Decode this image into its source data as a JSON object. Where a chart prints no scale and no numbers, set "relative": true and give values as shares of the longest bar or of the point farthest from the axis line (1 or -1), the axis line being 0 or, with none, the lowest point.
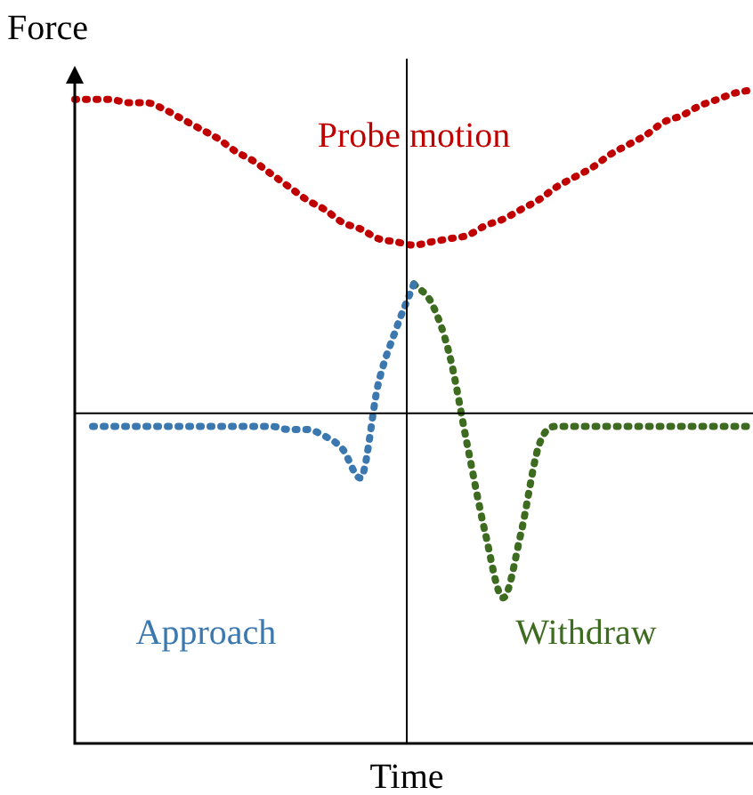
{
  "chart_data": {
    "type": "line",
    "relative": true,
    "xlabel": "Time",
    "ylabel": "Force",
    "line_style": "dotted",
    "marker": "none",
    "legend": false,
    "tick_labels": false,
    "categories": [
      null,
      null,
      null,
      null,
      null,
      null,
      null,
      null,
      null,
      null,
      null,
      null,
      null,
      null,
      null,
      null,
      null,
      null,
      null,
      null,
      null,
      null,
      null,
      null,
      null,
      null,
      null,
      null,
      null,
      null,
      null,
      null,
      null,
      null,
      null,
      null,
      null,
      null,
      null
    ],
    "series": [
      {
        "name": "Probe motion",
        "color": "#c00000",
        "values": [
          0.97,
          0.97,
          0.97,
          0.96,
          0.96,
          0.94,
          0.91,
          0.88,
          0.85,
          0.81,
          0.78,
          0.74,
          0.7,
          0.66,
          0.63,
          0.59,
          0.57,
          0.54,
          0.53,
          0.52,
          0.53,
          0.54,
          0.55,
          0.58,
          0.6,
          0.63,
          0.66,
          0.7,
          0.73,
          0.76,
          0.8,
          0.83,
          0.86,
          0.9,
          0.92,
          0.95,
          0.97,
          0.99,
          1
        ]
      },
      {
        "name": "Approach",
        "color": "#3b78b0",
        "values": [
          null,
          -0.04,
          -0.04,
          -0.04,
          -0.04,
          -0.04,
          -0.04,
          -0.04,
          -0.04,
          -0.04,
          -0.04,
          -0.04,
          -0.05,
          -0.05,
          -0.07,
          -0.11,
          -0.2,
          0.09,
          0.26,
          0.4,
          null,
          null,
          null,
          null,
          null,
          null,
          null,
          null,
          null,
          null,
          null,
          null,
          null,
          null,
          null,
          null,
          null,
          null,
          null
        ]
      },
      {
        "name": "Withdraw",
        "color": "#3d6b1f",
        "values": [
          null,
          null,
          null,
          null,
          null,
          null,
          null,
          null,
          null,
          null,
          null,
          null,
          null,
          null,
          null,
          null,
          null,
          null,
          null,
          0.4,
          0.34,
          0.18,
          -0.1,
          -0.37,
          -0.57,
          -0.37,
          -0.1,
          -0.04,
          -0.04,
          -0.04,
          -0.04,
          -0.04,
          -0.04,
          -0.04,
          -0.04,
          -0.04,
          -0.04,
          -0.04,
          -0.04
        ]
      }
    ]
  }
}
